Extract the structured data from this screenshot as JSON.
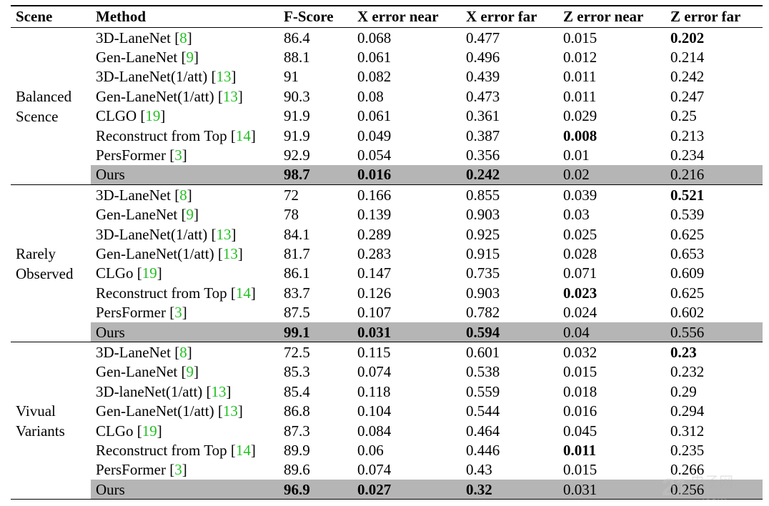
{
  "table": {
    "headers": [
      "Scene",
      "Method",
      "F-Score",
      "X error near",
      "X error far",
      "Z error near",
      "Z error far"
    ],
    "groups": [
      {
        "scene_lines": [
          "Balanced",
          "Scence"
        ],
        "rows": [
          {
            "method": "3D-LaneNet",
            "ref": "8",
            "values": [
              "86.4",
              "0.068",
              "0.477",
              "0.015",
              "0.202"
            ],
            "bold": [
              false,
              false,
              false,
              false,
              true
            ],
            "ours": false
          },
          {
            "method": "Gen-LaneNet",
            "ref": "9",
            "values": [
              "88.1",
              "0.061",
              "0.496",
              "0.012",
              "0.214"
            ],
            "bold": [
              false,
              false,
              false,
              false,
              false
            ],
            "ours": false
          },
          {
            "method": "3D-LaneNet(1/att)",
            "ref": "13",
            "values": [
              "91",
              "0.082",
              "0.439",
              "0.011",
              "0.242"
            ],
            "bold": [
              false,
              false,
              false,
              false,
              false
            ],
            "ours": false
          },
          {
            "method": "Gen-LaneNet(1/att)",
            "ref": "13",
            "values": [
              "90.3",
              "0.08",
              "0.473",
              "0.011",
              "0.247"
            ],
            "bold": [
              false,
              false,
              false,
              false,
              false
            ],
            "ours": false
          },
          {
            "method": "CLGO",
            "ref": "19",
            "values": [
              "91.9",
              "0.061",
              "0.361",
              "0.029",
              "0.25"
            ],
            "bold": [
              false,
              false,
              false,
              false,
              false
            ],
            "ours": false
          },
          {
            "method": "Reconstruct from Top",
            "ref": "14",
            "values": [
              "91.9",
              "0.049",
              "0.387",
              "0.008",
              "0.213"
            ],
            "bold": [
              false,
              false,
              false,
              true,
              false
            ],
            "ours": false
          },
          {
            "method": "PersFormer",
            "ref": "3",
            "values": [
              "92.9",
              "0.054",
              "0.356",
              "0.01",
              "0.234"
            ],
            "bold": [
              false,
              false,
              false,
              false,
              false
            ],
            "ours": false
          },
          {
            "method": "Ours",
            "ref": "",
            "values": [
              "98.7",
              "0.016",
              "0.242",
              "0.02",
              "0.216"
            ],
            "bold": [
              true,
              true,
              true,
              false,
              false
            ],
            "ours": true
          }
        ]
      },
      {
        "scene_lines": [
          "Rarely",
          "Observed"
        ],
        "rows": [
          {
            "method": "3D-LaneNet",
            "ref": "8",
            "values": [
              "72",
              "0.166",
              "0.855",
              "0.039",
              "0.521"
            ],
            "bold": [
              false,
              false,
              false,
              false,
              true
            ],
            "ours": false
          },
          {
            "method": "Gen-LaneNet",
            "ref": "9",
            "values": [
              "78",
              "0.139",
              "0.903",
              "0.03",
              "0.539"
            ],
            "bold": [
              false,
              false,
              false,
              false,
              false
            ],
            "ours": false
          },
          {
            "method": "3D-LaneNet(1/att)",
            "ref": "13",
            "values": [
              "84.1",
              "0.289",
              "0.925",
              "0.025",
              "0.625"
            ],
            "bold": [
              false,
              false,
              false,
              false,
              false
            ],
            "ours": false
          },
          {
            "method": "Gen-LaneNet(1/att)",
            "ref": "13",
            "values": [
              "81.7",
              "0.283",
              "0.915",
              "0.028",
              "0.653"
            ],
            "bold": [
              false,
              false,
              false,
              false,
              false
            ],
            "ours": false
          },
          {
            "method": "CLGo",
            "ref": "19",
            "values": [
              "86.1",
              "0.147",
              "0.735",
              "0.071",
              "0.609"
            ],
            "bold": [
              false,
              false,
              false,
              false,
              false
            ],
            "ours": false
          },
          {
            "method": "Reconstruct from Top",
            "ref": "14",
            "values": [
              "83.7",
              "0.126",
              "0.903",
              "0.023",
              "0.625"
            ],
            "bold": [
              false,
              false,
              false,
              true,
              false
            ],
            "ours": false
          },
          {
            "method": "PersFormer",
            "ref": "3",
            "values": [
              "87.5",
              "0.107",
              "0.782",
              "0.024",
              "0.602"
            ],
            "bold": [
              false,
              false,
              false,
              false,
              false
            ],
            "ours": false
          },
          {
            "method": "Ours",
            "ref": "",
            "values": [
              "99.1",
              "0.031",
              "0.594",
              "0.04",
              "0.556"
            ],
            "bold": [
              true,
              true,
              true,
              false,
              false
            ],
            "ours": true
          }
        ]
      },
      {
        "scene_lines": [
          "Vivual",
          "Variants"
        ],
        "rows": [
          {
            "method": "3D-LaneNet",
            "ref": "8",
            "values": [
              "72.5",
              "0.115",
              "0.601",
              "0.032",
              "0.23"
            ],
            "bold": [
              false,
              false,
              false,
              false,
              true
            ],
            "ours": false
          },
          {
            "method": "Gen-LaneNet",
            "ref": "9",
            "values": [
              "85.3",
              "0.074",
              "0.538",
              "0.015",
              "0.232"
            ],
            "bold": [
              false,
              false,
              false,
              false,
              false
            ],
            "ours": false
          },
          {
            "method": "3D-laneNet(1/att)",
            "ref": "13",
            "values": [
              "85.4",
              "0.118",
              "0.559",
              "0.018",
              "0.29"
            ],
            "bold": [
              false,
              false,
              false,
              false,
              false
            ],
            "ours": false
          },
          {
            "method": "Gen-LaneNet(1/att)",
            "ref": "13",
            "values": [
              "86.8",
              "0.104",
              "0.544",
              "0.016",
              "0.294"
            ],
            "bold": [
              false,
              false,
              false,
              false,
              false
            ],
            "ours": false
          },
          {
            "method": "CLGo",
            "ref": "19",
            "values": [
              "87.3",
              "0.084",
              "0.464",
              "0.045",
              "0.312"
            ],
            "bold": [
              false,
              false,
              false,
              false,
              false
            ],
            "ours": false
          },
          {
            "method": "Reconstruct from Top",
            "ref": "14",
            "values": [
              "89.9",
              "0.06",
              "0.446",
              "0.011",
              "0.235"
            ],
            "bold": [
              false,
              false,
              false,
              true,
              false
            ],
            "ours": false
          },
          {
            "method": "PersFormer",
            "ref": "3",
            "values": [
              "89.6",
              "0.074",
              "0.43",
              "0.015",
              "0.266"
            ],
            "bold": [
              false,
              false,
              false,
              false,
              false
            ],
            "ours": false
          },
          {
            "method": "Ours",
            "ref": "",
            "values": [
              "96.9",
              "0.027",
              "0.32",
              "0.031",
              "0.256"
            ],
            "bold": [
              true,
              true,
              true,
              false,
              false
            ],
            "ours": true
          }
        ]
      }
    ]
  },
  "watermark": {
    "text": "电子网",
    "subtext": ".com"
  },
  "colors": {
    "ours_highlight": "#b5b5b5",
    "citation": "#22c022"
  }
}
